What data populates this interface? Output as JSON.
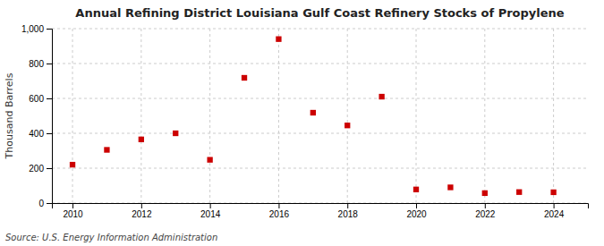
{
  "chart_data": {
    "type": "scatter",
    "title": "Annual Refining District Louisiana Gulf Coast Refinery Stocks of Propylene",
    "ylabel": "Thousand Barrels",
    "annotations": [
      "Source: U.S. Energy Information Administration"
    ],
    "x": [
      2010,
      2011,
      2012,
      2013,
      2014,
      2015,
      2016,
      2017,
      2018,
      2019,
      2020,
      2021,
      2022,
      2023,
      2024
    ],
    "values": [
      220,
      305,
      365,
      400,
      248,
      718,
      940,
      518,
      445,
      610,
      78,
      90,
      57,
      63,
      62
    ],
    "color": "#cc0000",
    "marker": "square",
    "xlim": [
      2009.4,
      2025.0
    ],
    "ylim": [
      0,
      1000
    ],
    "xticks": [
      2010,
      2012,
      2014,
      2016,
      2018,
      2020,
      2022,
      2024
    ],
    "yticks": [
      0,
      200,
      400,
      600,
      800,
      {
        "value": 1000,
        "label": "1,000"
      }
    ],
    "grid": true
  }
}
